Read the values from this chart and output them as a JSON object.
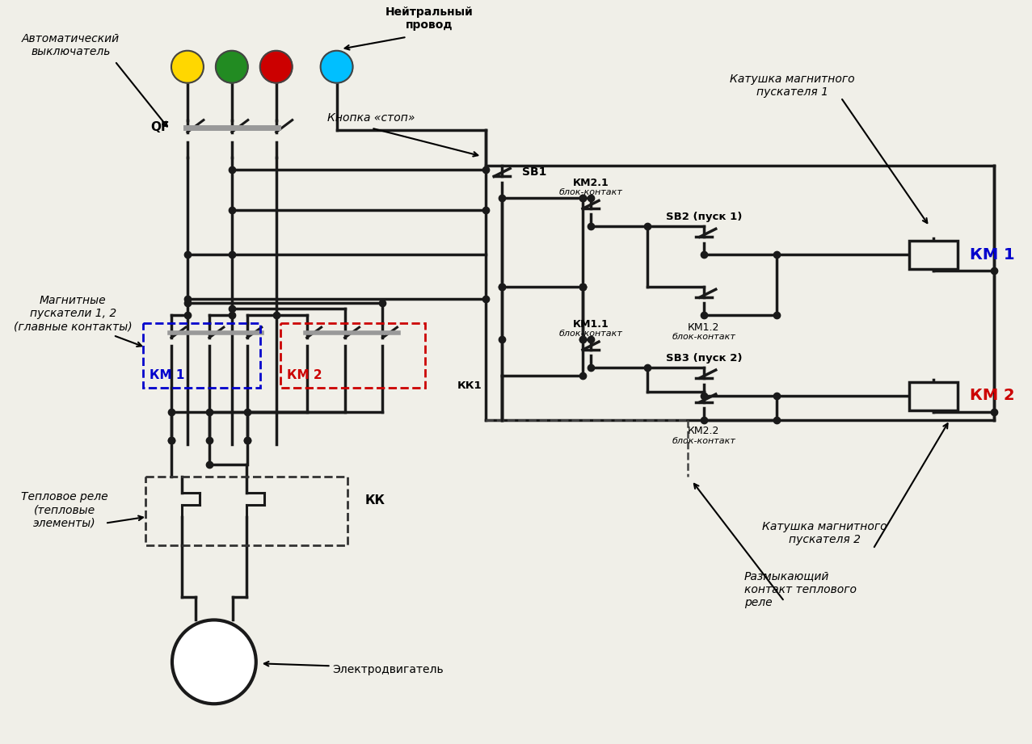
{
  "bg_color": "#f0efe8",
  "line_color": "#1a1a1a",
  "lw": 2.5,
  "lw2": 1.8,
  "phase_A_color": "#FFD700",
  "phase_B_color": "#228B22",
  "phase_C_color": "#CC0000",
  "phase_N_color": "#00BFFF",
  "km1_color": "#0000CC",
  "km2_color": "#CC0000",
  "gray_bar": "#999999",
  "label_auto": "Автоматический\nвыключатель",
  "label_neutral": "Нейтральный\nпровод",
  "label_stop": "Кнопка «стоп»",
  "label_mag": "Магнитные\nпускатели 1, 2\n(главные контакты)",
  "label_thermal": "Тепловое реле\n(тепловые\nэлементы)",
  "label_motor": "Электродвигатель",
  "label_coil1": "Катушка магнитного\nпускателя 1",
  "label_coil2": "Катушка магнитного\nпускателя 2",
  "label_thermal_contact": "Размыкающий\nконтакт теплового\nреле"
}
